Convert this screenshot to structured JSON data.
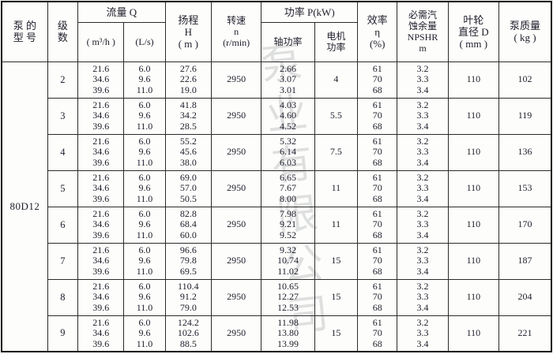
{
  "watermark": "泵业有限公司",
  "table": {
    "model": "80D12",
    "headers": {
      "model": [
        "泵 的",
        "型 号"
      ],
      "stage": [
        "级",
        "数"
      ],
      "flow_group": "流量 Q",
      "flow_m3h": "( m³/h )",
      "flow_ls": "(L/s)",
      "head": [
        "扬程",
        "H",
        "( m )"
      ],
      "speed": [
        "转速",
        "n",
        "(r/min)"
      ],
      "power_group": "功率 P(kW)",
      "power_shaft": "轴功率",
      "power_motor": [
        "电机",
        "功率"
      ],
      "eff": [
        "效率",
        "η",
        "(%)"
      ],
      "npsh": [
        "必需汽",
        "蚀余量",
        "NPSHR",
        "m"
      ],
      "dia": [
        "叶轮",
        "直径 D",
        "( mm )"
      ],
      "mass": [
        "泵质量",
        "( kg )"
      ]
    },
    "rows": [
      {
        "stage": "2",
        "flow": [
          "21.6",
          "34.6",
          "39.6"
        ],
        "ls": [
          "6.0",
          "9.6",
          "11.0"
        ],
        "head": [
          "27.6",
          "22.6",
          "19.0"
        ],
        "speed": "2950",
        "shaft": [
          "2.66",
          "3.07",
          "3.01"
        ],
        "motor": "4",
        "eff": [
          "61",
          "70",
          "68"
        ],
        "npsh": [
          "3.2",
          "3.3",
          "3.4"
        ],
        "dia": "110",
        "mass": "102"
      },
      {
        "stage": "3",
        "flow": [
          "21.6",
          "34.6",
          "39.6"
        ],
        "ls": [
          "6.0",
          "9.6",
          "11.0"
        ],
        "head": [
          "41.8",
          "34.2",
          "28.5"
        ],
        "speed": "2950",
        "shaft": [
          "4.03",
          "4.60",
          "4.52"
        ],
        "motor": "5.5",
        "eff": [
          "61",
          "70",
          "68"
        ],
        "npsh": [
          "3.2",
          "3.3",
          "3.4"
        ],
        "dia": "110",
        "mass": "119"
      },
      {
        "stage": "4",
        "flow": [
          "21.6",
          "34.6",
          "39.6"
        ],
        "ls": [
          "6.0",
          "9.6",
          "11.0"
        ],
        "head": [
          "55.2",
          "45.6",
          "38.0"
        ],
        "speed": "2950",
        "shaft": [
          "5.32",
          "6.14",
          "6.03"
        ],
        "motor": "7.5",
        "eff": [
          "61",
          "70",
          "68"
        ],
        "npsh": [
          "3.2",
          "3.3",
          "3.4"
        ],
        "dia": "110",
        "mass": "136"
      },
      {
        "stage": "5",
        "flow": [
          "21.6",
          "34.6",
          "39.6"
        ],
        "ls": [
          "6.0",
          "9.6",
          "11.0"
        ],
        "head": [
          "69.0",
          "57.0",
          "50.5"
        ],
        "speed": "2950",
        "shaft": [
          "6.65",
          "7.67",
          "8.00"
        ],
        "motor": "11",
        "eff": [
          "61",
          "70",
          "68"
        ],
        "npsh": [
          "3.2",
          "3.3",
          "3.4"
        ],
        "dia": "110",
        "mass": "153"
      },
      {
        "stage": "6",
        "flow": [
          "21.6",
          "34.6",
          "39.6"
        ],
        "ls": [
          "6.0",
          "9.6",
          "11.0"
        ],
        "head": [
          "82.8",
          "68.4",
          "60.0"
        ],
        "speed": "2950",
        "shaft": [
          "7.98",
          "9.21",
          "9.52"
        ],
        "motor": "11",
        "eff": [
          "61",
          "70",
          "68"
        ],
        "npsh": [
          "3.2",
          "3.3",
          "3.4"
        ],
        "dia": "110",
        "mass": "170"
      },
      {
        "stage": "7",
        "flow": [
          "21.6",
          "34.6",
          "39.6"
        ],
        "ls": [
          "6.0",
          "9.6",
          "11.0"
        ],
        "head": [
          "96.6",
          "79.8",
          "69.5"
        ],
        "speed": "2950",
        "shaft": [
          "9.32",
          "10.74",
          "11.02"
        ],
        "motor": "15",
        "eff": [
          "61",
          "70",
          "68"
        ],
        "npsh": [
          "3.2",
          "3.3",
          "3.4"
        ],
        "dia": "110",
        "mass": "187"
      },
      {
        "stage": "8",
        "flow": [
          "21.6",
          "34.6",
          "39.6"
        ],
        "ls": [
          "6.0",
          "9.6",
          "11.0"
        ],
        "head": [
          "110.4",
          "91.2",
          "79.0"
        ],
        "speed": "2950",
        "shaft": [
          "10.65",
          "12.27",
          "12.53"
        ],
        "motor": "15",
        "eff": [
          "61",
          "70",
          "68"
        ],
        "npsh": [
          "3.2",
          "3.3",
          "3.4"
        ],
        "dia": "110",
        "mass": "204"
      },
      {
        "stage": "9",
        "flow": [
          "21.6",
          "34.6",
          "39.6"
        ],
        "ls": [
          "6.0",
          "9.6",
          "11.0"
        ],
        "head": [
          "124.2",
          "102.6",
          "88.5"
        ],
        "speed": "2950",
        "shaft": [
          "11.98",
          "13.80",
          "13.99"
        ],
        "motor": "15",
        "eff": [
          "61",
          "70",
          "68"
        ],
        "npsh": [
          "3.2",
          "3.3",
          "3.4"
        ],
        "dia": "110",
        "mass": "221"
      }
    ]
  }
}
